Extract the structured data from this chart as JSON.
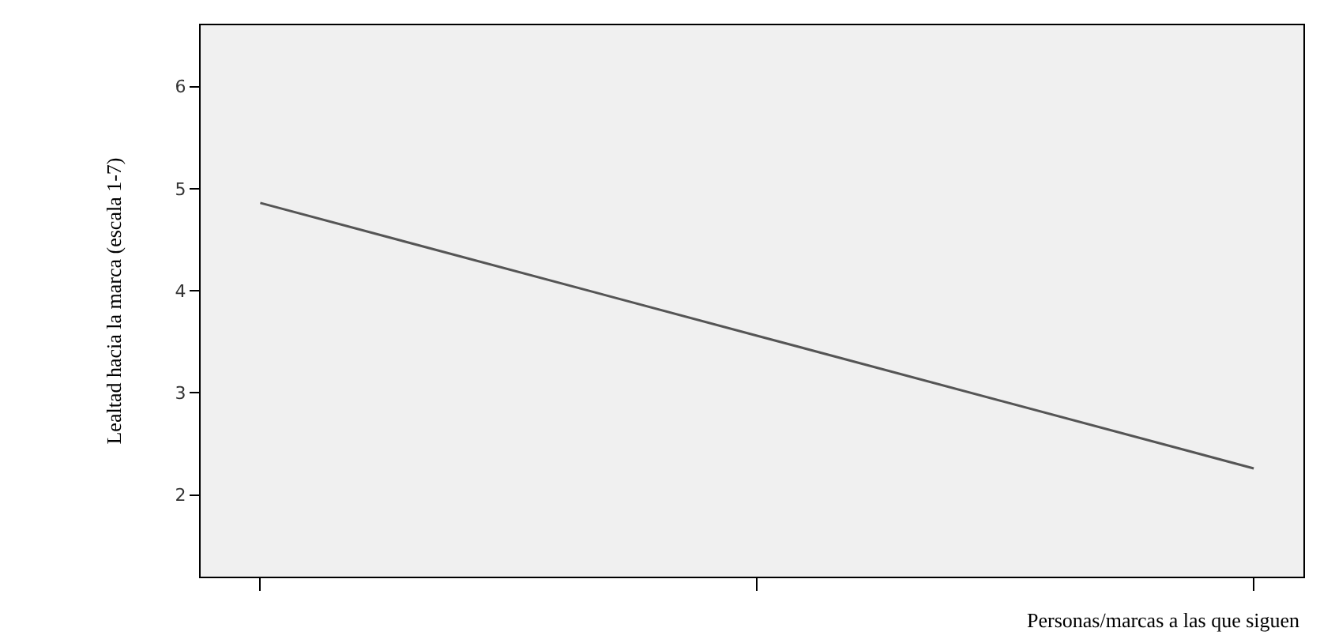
{
  "chart_data": {
    "type": "line",
    "xlabel": "Personas/marcas a las que siguen",
    "ylabel": "Lealtad hacia la marca (escala 1-7)",
    "categories": [
      null,
      null,
      null
    ],
    "series": [
      {
        "color": "#555555",
        "values": [
          4.86,
          3.56,
          2.26
        ]
      }
    ],
    "ylim": [
      1.2,
      6.6
    ],
    "yticks": [
      2,
      3,
      4,
      5,
      6
    ],
    "grid": false,
    "marker": "none",
    "line_style": "solid"
  }
}
